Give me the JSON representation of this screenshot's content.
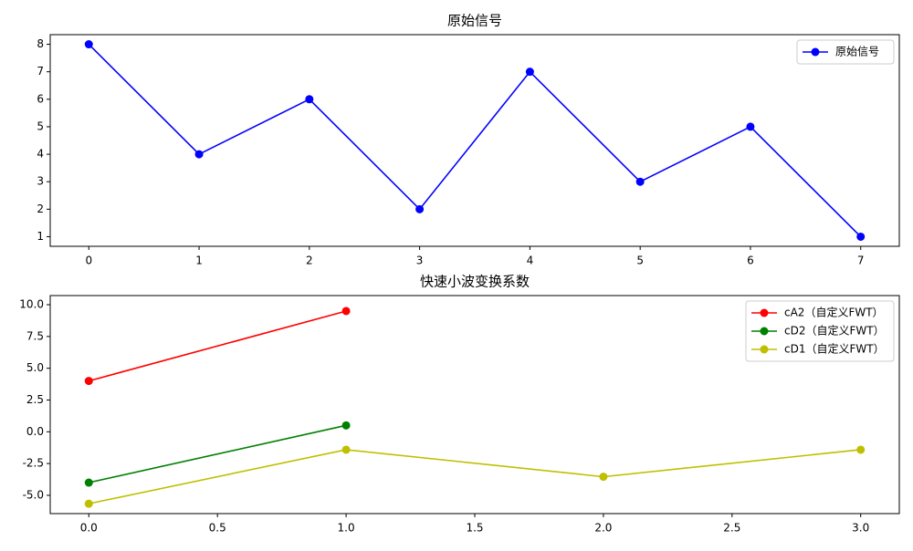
{
  "chart_data": [
    {
      "type": "line",
      "title": "原始信号",
      "x": [
        0,
        1,
        2,
        3,
        4,
        5,
        6,
        7
      ],
      "series": [
        {
          "name": "原始信号",
          "color": "#0000ff",
          "values": [
            8,
            4,
            6,
            2,
            7,
            3,
            5,
            1
          ]
        }
      ],
      "xlim": [
        -0.35,
        7.35
      ],
      "xticks": [
        0,
        1,
        2,
        3,
        4,
        5,
        6,
        7
      ],
      "ylim": [
        0.65,
        8.35
      ],
      "yticks": [
        1,
        2,
        3,
        4,
        5,
        6,
        7,
        8
      ],
      "legend": "upper right"
    },
    {
      "type": "line",
      "title": "快速小波变换系数",
      "series": [
        {
          "name": "cA2（自定义FWT）",
          "color": "#ff0000",
          "x": [
            0,
            1
          ],
          "values": [
            4,
            9.5
          ]
        },
        {
          "name": "cD2（自定义FWT）",
          "color": "#008000",
          "x": [
            0,
            1
          ],
          "values": [
            -4,
            0.5
          ]
        },
        {
          "name": "cD1（自定义FWT）",
          "color": "#bfbf00",
          "x": [
            0,
            1,
            2,
            3
          ],
          "values": [
            -5.66,
            -1.41,
            -3.54,
            -1.41
          ]
        }
      ],
      "xlim": [
        -0.15,
        3.15
      ],
      "xticks": [
        {
          "value": 0,
          "label": "0.0"
        },
        {
          "value": 0.5,
          "label": "0.5"
        },
        {
          "value": 1,
          "label": "1.0"
        },
        {
          "value": 1.5,
          "label": "1.5"
        },
        {
          "value": 2,
          "label": "2.0"
        },
        {
          "value": 2.5,
          "label": "2.5"
        },
        {
          "value": 3,
          "label": "3.0"
        }
      ],
      "ylim": [
        -6.44,
        10.72
      ],
      "yticks": [
        {
          "value": -5,
          "label": "-5.0"
        },
        {
          "value": -2.5,
          "label": "-2.5"
        },
        {
          "value": 0,
          "label": "0.0"
        },
        {
          "value": 2.5,
          "label": "2.5"
        },
        {
          "value": 5,
          "label": "5.0"
        },
        {
          "value": 7.5,
          "label": "7.5"
        },
        {
          "value": 10,
          "label": "10.0"
        }
      ],
      "legend": "upper right"
    }
  ]
}
